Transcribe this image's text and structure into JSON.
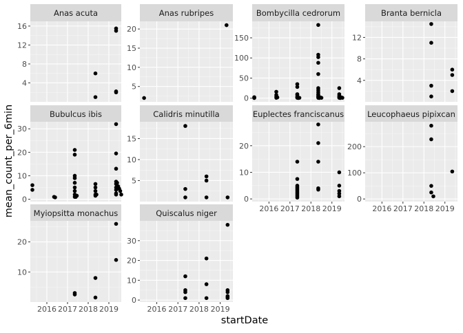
{
  "chart_data": {
    "type": "scatter",
    "layout": "faceted",
    "xlabel": "startDate",
    "ylabel": "mean_count_per_6min",
    "x_ticks": [
      "2016",
      "2017",
      "2018",
      "2019"
    ],
    "x_range": [
      2015.2,
      2019.6
    ],
    "point_color": "#000000",
    "panel_background": "#ebebeb",
    "strip_background": "#d9d9d9",
    "grid": true,
    "facets": [
      {
        "title": "Anas acuta",
        "ylim": [
          0,
          17
        ],
        "y_ticks": [
          4,
          8,
          12,
          16
        ],
        "points": [
          [
            2018.35,
            6.0
          ],
          [
            2018.35,
            1.0
          ],
          [
            2019.35,
            15.5
          ],
          [
            2019.35,
            15.0
          ],
          [
            2019.35,
            2.0
          ],
          [
            2019.35,
            2.2
          ]
        ]
      },
      {
        "title": "Anas rubripes",
        "ylim": [
          1,
          22
        ],
        "y_ticks": [
          5,
          10,
          15,
          20
        ],
        "points": [
          [
            2015.4,
            2.0
          ],
          [
            2019.3,
            21.0
          ]
        ]
      },
      {
        "title": "Bombycilla cedrorum",
        "ylim": [
          -9,
          191
        ],
        "y_ticks": [
          0,
          50,
          100,
          150
        ],
        "points": [
          [
            2015.3,
            0.5
          ],
          [
            2015.3,
            1.0
          ],
          [
            2015.3,
            2.5
          ],
          [
            2016.35,
            16.0
          ],
          [
            2016.35,
            8.0
          ],
          [
            2016.35,
            4.0
          ],
          [
            2016.35,
            1.0
          ],
          [
            2016.4,
            2.0
          ],
          [
            2017.35,
            35.0
          ],
          [
            2017.35,
            28.0
          ],
          [
            2017.35,
            10.0
          ],
          [
            2017.35,
            8.0
          ],
          [
            2017.35,
            4.0
          ],
          [
            2017.35,
            2.0
          ],
          [
            2017.35,
            1.0
          ],
          [
            2017.4,
            0.5
          ],
          [
            2017.45,
            1.0
          ],
          [
            2018.35,
            182.0
          ],
          [
            2018.35,
            108.0
          ],
          [
            2018.35,
            102.0
          ],
          [
            2018.35,
            88.0
          ],
          [
            2018.35,
            60.0
          ],
          [
            2018.35,
            25.0
          ],
          [
            2018.35,
            20.0
          ],
          [
            2018.35,
            15.0
          ],
          [
            2018.35,
            10.0
          ],
          [
            2018.35,
            8.0
          ],
          [
            2018.35,
            5.0
          ],
          [
            2018.35,
            3.0
          ],
          [
            2018.35,
            1.0
          ],
          [
            2018.4,
            0.5
          ],
          [
            2018.45,
            2.0
          ],
          [
            2018.5,
            1.0
          ],
          [
            2019.35,
            25.0
          ],
          [
            2019.35,
            10.0
          ],
          [
            2019.35,
            6.0
          ],
          [
            2019.35,
            3.0
          ],
          [
            2019.35,
            1.0
          ],
          [
            2019.4,
            0.5
          ],
          [
            2019.45,
            2.0
          ],
          [
            2019.5,
            1.0
          ]
        ]
      },
      {
        "title": "Branta bernicla",
        "ylim": [
          0,
          15
        ],
        "y_ticks": [
          4,
          8,
          12
        ],
        "points": [
          [
            2018.35,
            14.5
          ],
          [
            2018.35,
            11.0
          ],
          [
            2018.35,
            3.0
          ],
          [
            2018.35,
            1.0
          ],
          [
            2019.35,
            6.0
          ],
          [
            2019.35,
            5.0
          ],
          [
            2019.35,
            2.0
          ]
        ]
      },
      {
        "title": "Bubulcus ibis",
        "ylim": [
          -1,
          33
        ],
        "y_ticks": [
          0,
          10,
          20,
          30
        ],
        "points": [
          [
            2015.3,
            6.0
          ],
          [
            2015.3,
            4.0
          ],
          [
            2016.35,
            1.0
          ],
          [
            2016.4,
            0.8
          ],
          [
            2017.35,
            21.0
          ],
          [
            2017.35,
            19.0
          ],
          [
            2017.35,
            10.0
          ],
          [
            2017.35,
            9.0
          ],
          [
            2017.35,
            7.0
          ],
          [
            2017.35,
            5.0
          ],
          [
            2017.35,
            3.5
          ],
          [
            2017.35,
            2.0
          ],
          [
            2017.35,
            1.0
          ],
          [
            2017.4,
            1.0
          ],
          [
            2017.45,
            1.5
          ],
          [
            2018.35,
            6.5
          ],
          [
            2018.35,
            5.0
          ],
          [
            2018.35,
            3.5
          ],
          [
            2018.35,
            2.0
          ],
          [
            2018.35,
            1.5
          ],
          [
            2018.4,
            2.0
          ],
          [
            2019.35,
            32.0
          ],
          [
            2019.35,
            19.5
          ],
          [
            2019.35,
            13.0
          ],
          [
            2019.35,
            7.5
          ],
          [
            2019.35,
            6.5
          ],
          [
            2019.35,
            5.0
          ],
          [
            2019.35,
            4.0
          ],
          [
            2019.35,
            2.5
          ],
          [
            2019.35,
            2.0
          ],
          [
            2019.4,
            7.0
          ],
          [
            2019.45,
            5.5
          ],
          [
            2019.5,
            4.5
          ],
          [
            2019.55,
            3.5
          ],
          [
            2019.6,
            2.0
          ]
        ]
      },
      {
        "title": "Calidris minutilla",
        "ylim": [
          0,
          19
        ],
        "y_ticks": [
          5,
          10,
          15
        ],
        "points": [
          [
            2017.35,
            18.0
          ],
          [
            2017.35,
            3.0
          ],
          [
            2017.35,
            1.0
          ],
          [
            2018.35,
            6.0
          ],
          [
            2018.35,
            5.0
          ],
          [
            2018.35,
            1.0
          ],
          [
            2019.35,
            1.0
          ]
        ]
      },
      {
        "title": "Euplectes franciscanus",
        "ylim": [
          -1,
          29
        ],
        "y_ticks": [
          0,
          10,
          20
        ],
        "points": [
          [
            2017.35,
            14.0
          ],
          [
            2017.35,
            7.5
          ],
          [
            2017.35,
            5.0
          ],
          [
            2017.35,
            4.5
          ],
          [
            2017.35,
            4.0
          ],
          [
            2017.35,
            3.5
          ],
          [
            2017.35,
            3.0
          ],
          [
            2017.35,
            2.5
          ],
          [
            2017.35,
            2.0
          ],
          [
            2017.35,
            1.5
          ],
          [
            2017.35,
            1.0
          ],
          [
            2017.35,
            0.5
          ],
          [
            2018.35,
            28.0
          ],
          [
            2018.35,
            21.0
          ],
          [
            2018.35,
            14.0
          ],
          [
            2018.35,
            4.0
          ],
          [
            2018.35,
            3.5
          ],
          [
            2019.35,
            10.0
          ],
          [
            2019.35,
            5.0
          ],
          [
            2019.35,
            3.0
          ],
          [
            2019.35,
            2.0
          ],
          [
            2019.35,
            1.0
          ]
        ]
      },
      {
        "title": "Leucophaeus pipixcan",
        "ylim": [
          -10,
          295
        ],
        "y_ticks": [
          0,
          100,
          200
        ],
        "points": [
          [
            2018.35,
            280.0
          ],
          [
            2018.35,
            228.0
          ],
          [
            2018.35,
            50.0
          ],
          [
            2018.35,
            25.0
          ],
          [
            2018.45,
            10.0
          ],
          [
            2019.35,
            105.0
          ]
        ]
      },
      {
        "title": "Myiopsitta monachus",
        "ylim": [
          0,
          27
        ],
        "y_ticks": [
          10,
          20
        ],
        "points": [
          [
            2017.35,
            3.0
          ],
          [
            2017.35,
            2.5
          ],
          [
            2018.35,
            8.0
          ],
          [
            2018.35,
            1.5
          ],
          [
            2019.35,
            26.0
          ],
          [
            2019.35,
            14.0
          ]
        ]
      },
      {
        "title": "Quiscalus niger",
        "ylim": [
          -1,
          40
        ],
        "y_ticks": [
          0,
          10,
          20,
          30
        ],
        "points": [
          [
            2017.35,
            12.0
          ],
          [
            2017.35,
            5.0
          ],
          [
            2017.35,
            4.0
          ],
          [
            2017.35,
            1.0
          ],
          [
            2018.35,
            21.0
          ],
          [
            2018.35,
            8.0
          ],
          [
            2018.35,
            1.0
          ],
          [
            2019.35,
            38.0
          ],
          [
            2019.35,
            5.0
          ],
          [
            2019.35,
            4.0
          ],
          [
            2019.35,
            2.0
          ],
          [
            2019.35,
            1.5
          ],
          [
            2019.35,
            1.0
          ]
        ]
      }
    ]
  }
}
